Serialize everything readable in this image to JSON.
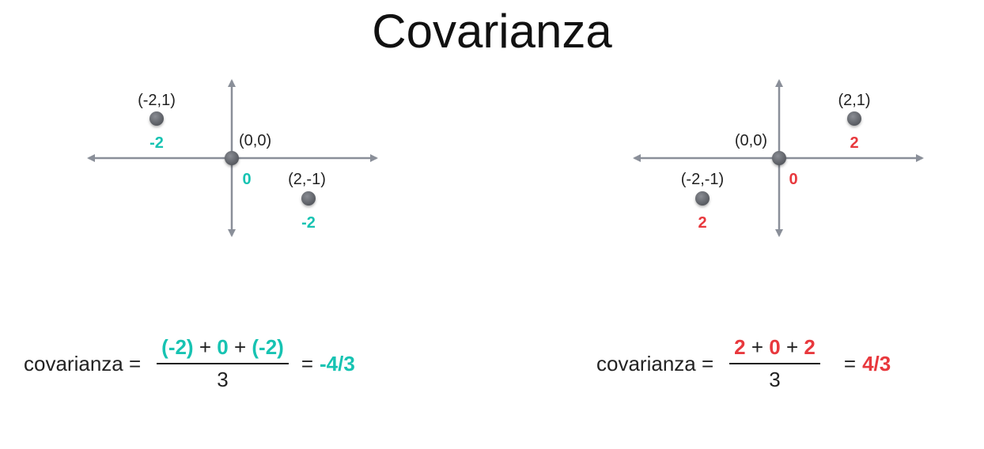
{
  "title": "Covarianza",
  "colors": {
    "negative": "#17c3b2",
    "positive": "#e8383d",
    "axis": "#8a8f99",
    "point": "#6b6e75"
  },
  "left_diagram": {
    "points": [
      {
        "coord": "(-2,1)",
        "product": "-2"
      },
      {
        "coord": "(0,0)",
        "product": "0"
      },
      {
        "coord": "(2,-1)",
        "product": "-2"
      }
    ]
  },
  "right_diagram": {
    "points": [
      {
        "coord": "(2,1)",
        "product": "2"
      },
      {
        "coord": "(0,0)",
        "product": "0"
      },
      {
        "coord": "(-2,-1)",
        "product": "2"
      }
    ]
  },
  "left_formula": {
    "label": "covarianza =",
    "terms": [
      "(-2)",
      "0",
      "(-2)"
    ],
    "plus": "+",
    "denominator": "3",
    "equals": "=",
    "result": "-4/3"
  },
  "right_formula": {
    "label": "covarianza =",
    "terms": [
      "2",
      "0",
      "2"
    ],
    "plus": "+",
    "denominator": "3",
    "equals": "=",
    "result": "4/3"
  }
}
